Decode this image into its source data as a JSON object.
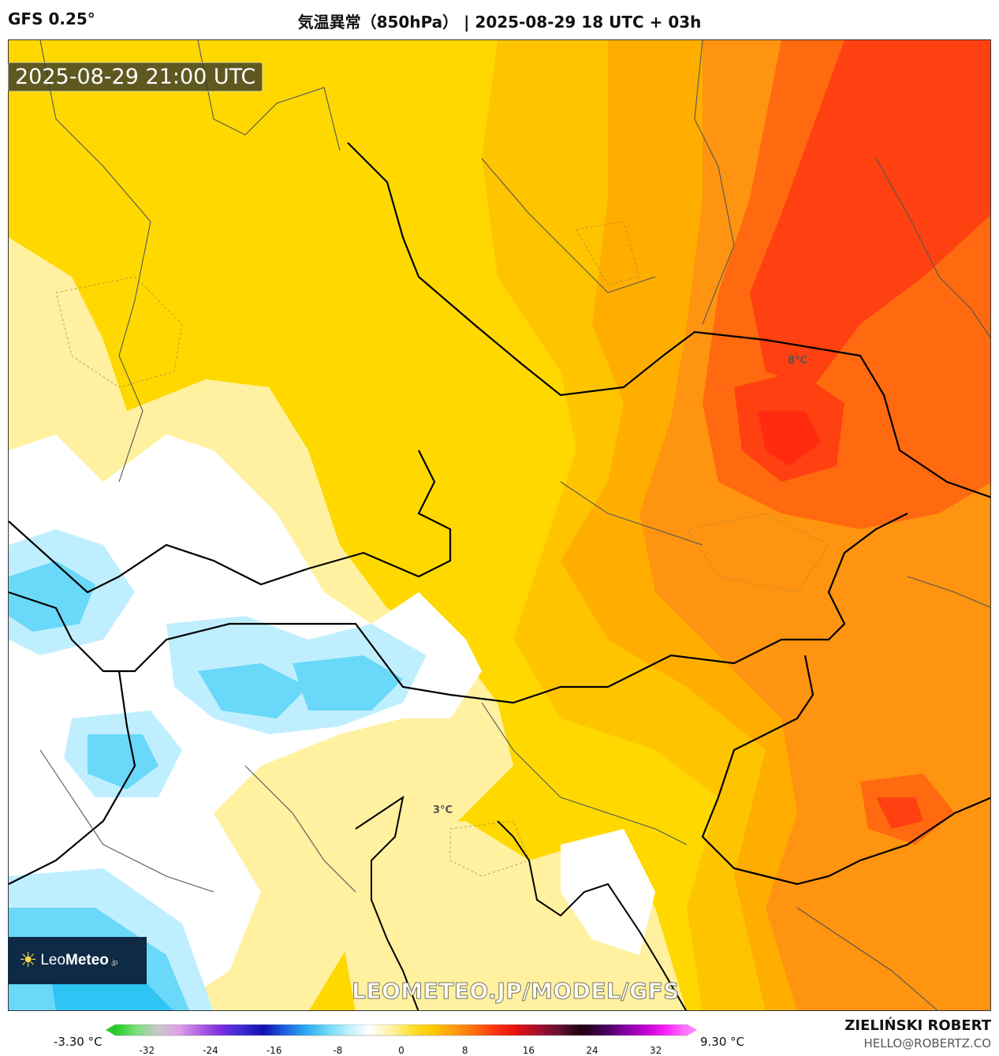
{
  "header": {
    "model": "GFS 0.25°",
    "title": "気温異常（850hPa） | 2025-08-29 18 UTC + 03h"
  },
  "timestamp": "2025-08-29 21:00 UTC",
  "map": {
    "contour_labels": [
      "8°C",
      "3°C"
    ]
  },
  "logo": {
    "name_light": "Leo",
    "name_bold": "Meteo",
    "suffix": ".jp"
  },
  "watermark": "LEOMETEO.JP/MODEL/GFS",
  "legend": {
    "min_label": "-3.30 °C",
    "max_label": "9.30 °C",
    "ticks": [
      "-32",
      "-24",
      "-16",
      "-8",
      "0",
      "8",
      "16",
      "24",
      "32"
    ],
    "tick_values": [
      -32,
      -24,
      -16,
      -8,
      0,
      8,
      16,
      24,
      32
    ],
    "range": [
      -36,
      36
    ],
    "colors": [
      "#22cc22",
      "#7ce07c",
      "#c8c8c8",
      "#e0a0e8",
      "#b060e0",
      "#7a2ee0",
      "#3a2ad0",
      "#1010b0",
      "#1e60e0",
      "#2ea8f0",
      "#6ad8f8",
      "#bfefff",
      "#ffffff",
      "#fff3a8",
      "#ffe030",
      "#ffc800",
      "#ff9a10",
      "#ff6a10",
      "#ff3010",
      "#e01010",
      "#a01030",
      "#601030",
      "#200010",
      "#400050",
      "#8000a0",
      "#c000d0",
      "#ff20ff",
      "#ff80ff"
    ]
  },
  "author": {
    "name": "ZIELIŃSKI ROBERT",
    "email": "HELLO@ROBERTZ.CO"
  }
}
